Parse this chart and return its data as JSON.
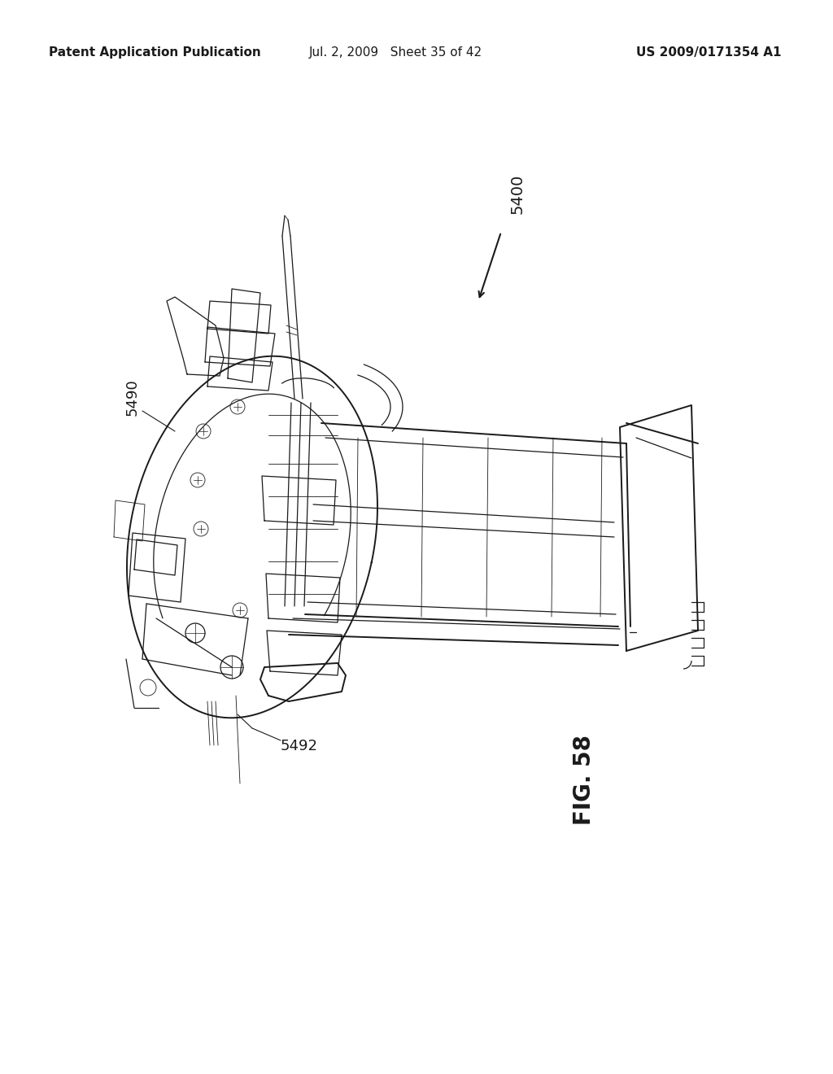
{
  "title_left": "Patent Application Publication",
  "title_center": "Jul. 2, 2009   Sheet 35 of 42",
  "title_right": "US 2009/0171354 A1",
  "fig_label": "FIG. 58",
  "label_5400": "5400",
  "label_5490": "5490",
  "label_5492": "5492",
  "bg_color": "#ffffff",
  "line_color": "#1a1a1a",
  "header_fontsize": 11,
  "label_fontsize": 13,
  "fig_label_fontsize": 20
}
